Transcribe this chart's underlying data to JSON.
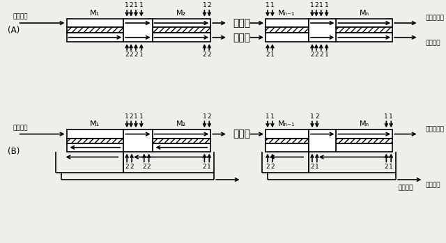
{
  "bg_color": "#f0eeeb",
  "label_genryo": "原料ガス",
  "label_hitou": "非透過ガス",
  "label_tou": "透過ガス",
  "label_A": "(A)",
  "label_B": "(B)",
  "mod_M1": "M₁",
  "mod_M2": "M₂",
  "mod_Mn1": "Mₙ₋₁",
  "mod_Mn": "Mₙ",
  "dots": "・・・"
}
